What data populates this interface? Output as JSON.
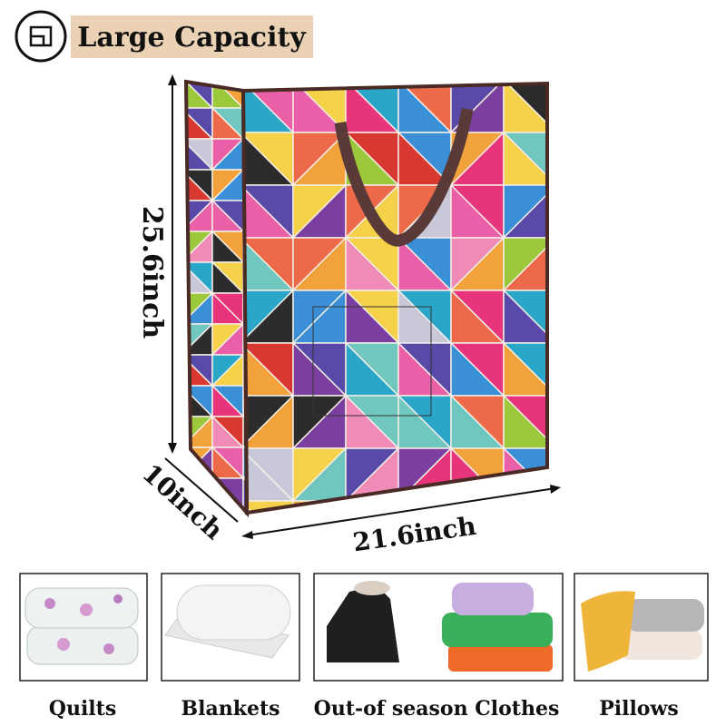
{
  "header": {
    "title": "Large Capacity"
  },
  "dimensions": {
    "height": "25.6inch",
    "depth": "10inch",
    "width": "21.6inch"
  },
  "items": [
    {
      "label": "Quilts"
    },
    {
      "label": "Blankets"
    },
    {
      "label": "Out-of season Clothes"
    },
    {
      "label": "Pillows"
    }
  ]
}
